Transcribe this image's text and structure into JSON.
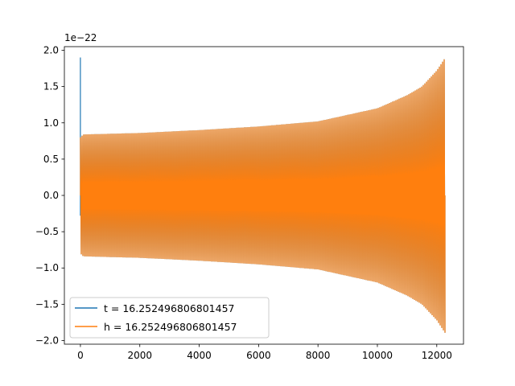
{
  "chart_data": {
    "type": "line",
    "title": "",
    "xlabel": "",
    "ylabel": "",
    "y_offset_text": "1e−22",
    "xlim": [
      -540,
      12900
    ],
    "ylim": [
      -2.05,
      2.05
    ],
    "x_ticks": [
      0,
      2000,
      4000,
      6000,
      8000,
      10000,
      12000
    ],
    "x_tick_labels": [
      "0",
      "2000",
      "4000",
      "6000",
      "8000",
      "10000",
      "12000"
    ],
    "y_ticks": [
      -2.0,
      -1.5,
      -1.0,
      -0.5,
      0.0,
      0.5,
      1.0,
      1.5,
      2.0
    ],
    "y_tick_labels": [
      "−2.0",
      "−1.5",
      "−1.0",
      "−0.5",
      "0.0",
      "0.5",
      "1.0",
      "1.5",
      "2.0"
    ],
    "grid": false,
    "legend_location": "lower-left",
    "series": [
      {
        "name": "t = 16.252496806801457",
        "color": "#1f77b4",
        "x_range": [
          0,
          12290
        ],
        "spike": {
          "x": 0,
          "y": 1.9
        },
        "envelope": [
          [
            0,
            0.8
          ],
          [
            100,
            0.84
          ],
          [
            2000,
            0.86
          ],
          [
            4000,
            0.9
          ],
          [
            6000,
            0.95
          ],
          [
            8000,
            1.02
          ],
          [
            10000,
            1.2
          ],
          [
            11000,
            1.38
          ],
          [
            11500,
            1.5
          ],
          [
            12000,
            1.72
          ],
          [
            12290,
            1.9
          ]
        ]
      },
      {
        "name": "h = 16.252496806801457",
        "color": "#ff7f0e",
        "x_range": [
          0,
          12290
        ],
        "envelope": [
          [
            0,
            0.8
          ],
          [
            100,
            0.84
          ],
          [
            2000,
            0.86
          ],
          [
            4000,
            0.9
          ],
          [
            6000,
            0.95
          ],
          [
            8000,
            1.02
          ],
          [
            10000,
            1.2
          ],
          [
            11000,
            1.38
          ],
          [
            11500,
            1.5
          ],
          [
            12000,
            1.72
          ],
          [
            12290,
            1.9
          ]
        ]
      }
    ]
  }
}
